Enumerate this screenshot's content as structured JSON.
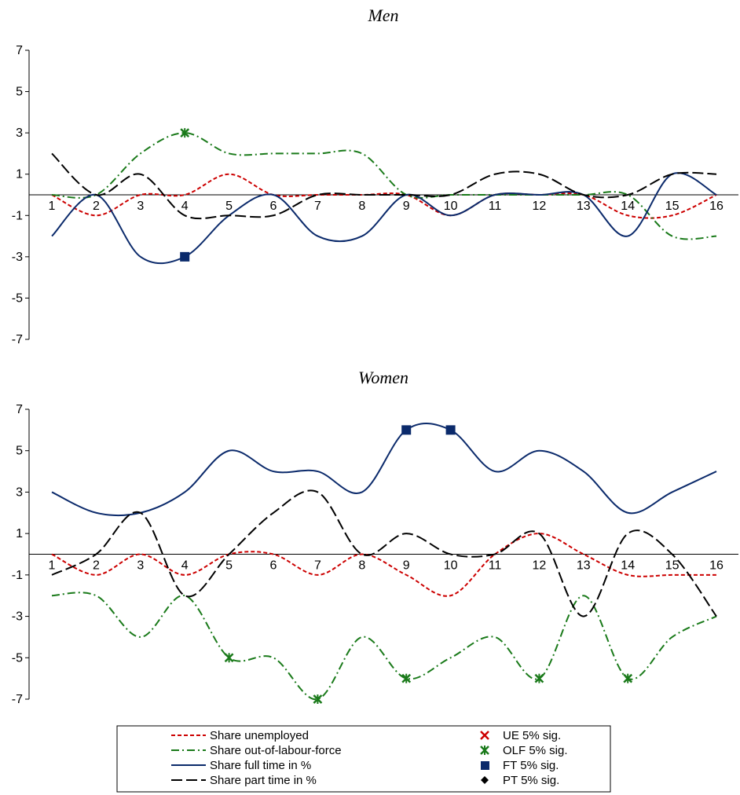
{
  "colors": {
    "ue": "#cc0000",
    "olf": "#1a7a1a",
    "ft": "#0b2a6b",
    "pt": "#000000"
  },
  "legend": {
    "series": [
      "Share unemployed",
      "Share out-of-labour-force",
      "Share full time in %",
      "Share part time in %"
    ],
    "markers": [
      "UE 5% sig.",
      "OLF 5% sig.",
      "FT 5% sig.",
      "PT 5% sig."
    ]
  },
  "chart_data": [
    {
      "type": "line",
      "title": "Men",
      "x": [
        1,
        2,
        3,
        4,
        5,
        6,
        7,
        8,
        9,
        10,
        11,
        12,
        13,
        14,
        15,
        16
      ],
      "ylim": [
        -7,
        7
      ],
      "yticks": [
        7,
        5,
        3,
        1,
        -1,
        -3,
        -5,
        -7
      ],
      "grid": false,
      "series": [
        {
          "name": "Share unemployed",
          "key": "ue",
          "style": "short-dash",
          "values": [
            0,
            -1,
            0,
            0,
            1,
            0,
            0,
            0,
            0,
            -1,
            0,
            0,
            0,
            -1,
            -1,
            0
          ]
        },
        {
          "name": "Share out-of-labour-force",
          "key": "olf",
          "style": "dash-dot",
          "values": [
            0,
            0,
            2,
            3,
            2,
            2,
            2,
            2,
            0,
            0,
            0,
            0,
            0,
            0,
            -2,
            -2
          ]
        },
        {
          "name": "Share full time in %",
          "key": "ft",
          "style": "solid",
          "values": [
            -2,
            0,
            -3,
            -3,
            -1,
            0,
            -2,
            -2,
            0,
            -1,
            0,
            0,
            0,
            -2,
            1,
            0
          ]
        },
        {
          "name": "Share part time in %",
          "key": "pt",
          "style": "long-dash",
          "values": [
            2,
            0,
            1,
            -1,
            -1,
            -1,
            0,
            0,
            0,
            0,
            1,
            1,
            0,
            0,
            1,
            1
          ]
        }
      ],
      "significant": [
        {
          "series": "olf",
          "x": 4,
          "y": 3
        },
        {
          "series": "ft",
          "x": 4,
          "y": -3
        }
      ]
    },
    {
      "type": "line",
      "title": "Women",
      "x": [
        1,
        2,
        3,
        4,
        5,
        6,
        7,
        8,
        9,
        10,
        11,
        12,
        13,
        14,
        15,
        16
      ],
      "ylim": [
        -7,
        7
      ],
      "yticks": [
        7,
        5,
        3,
        1,
        -1,
        -3,
        -5,
        -7
      ],
      "grid": false,
      "series": [
        {
          "name": "Share unemployed",
          "key": "ue",
          "style": "short-dash",
          "values": [
            0,
            -1,
            0,
            -1,
            0,
            0,
            -1,
            0,
            -1,
            -2,
            0,
            1,
            0,
            -1,
            -1,
            -1
          ]
        },
        {
          "name": "Share out-of-labour-force",
          "key": "olf",
          "style": "dash-dot",
          "values": [
            -2,
            -2,
            -4,
            -2,
            -5,
            -5,
            -7,
            -4,
            -6,
            -5,
            -4,
            -6,
            -2,
            -6,
            -4,
            -3
          ]
        },
        {
          "name": "Share full time in %",
          "key": "ft",
          "style": "solid",
          "values": [
            3,
            2,
            2,
            3,
            5,
            4,
            4,
            3,
            6,
            6,
            4,
            5,
            4,
            2,
            3,
            4
          ]
        },
        {
          "name": "Share part time in %",
          "key": "pt",
          "style": "long-dash",
          "values": [
            -1,
            0,
            2,
            -2,
            0,
            2,
            3,
            0,
            1,
            0,
            0,
            1,
            -3,
            1,
            0,
            -3
          ]
        }
      ],
      "significant": [
        {
          "series": "ft",
          "x": 9,
          "y": 6
        },
        {
          "series": "ft",
          "x": 10,
          "y": 6
        },
        {
          "series": "olf",
          "x": 5,
          "y": -5
        },
        {
          "series": "olf",
          "x": 7,
          "y": -7
        },
        {
          "series": "olf",
          "x": 9,
          "y": -6
        },
        {
          "series": "olf",
          "x": 12,
          "y": -6
        },
        {
          "series": "olf",
          "x": 14,
          "y": -6
        }
      ]
    }
  ]
}
